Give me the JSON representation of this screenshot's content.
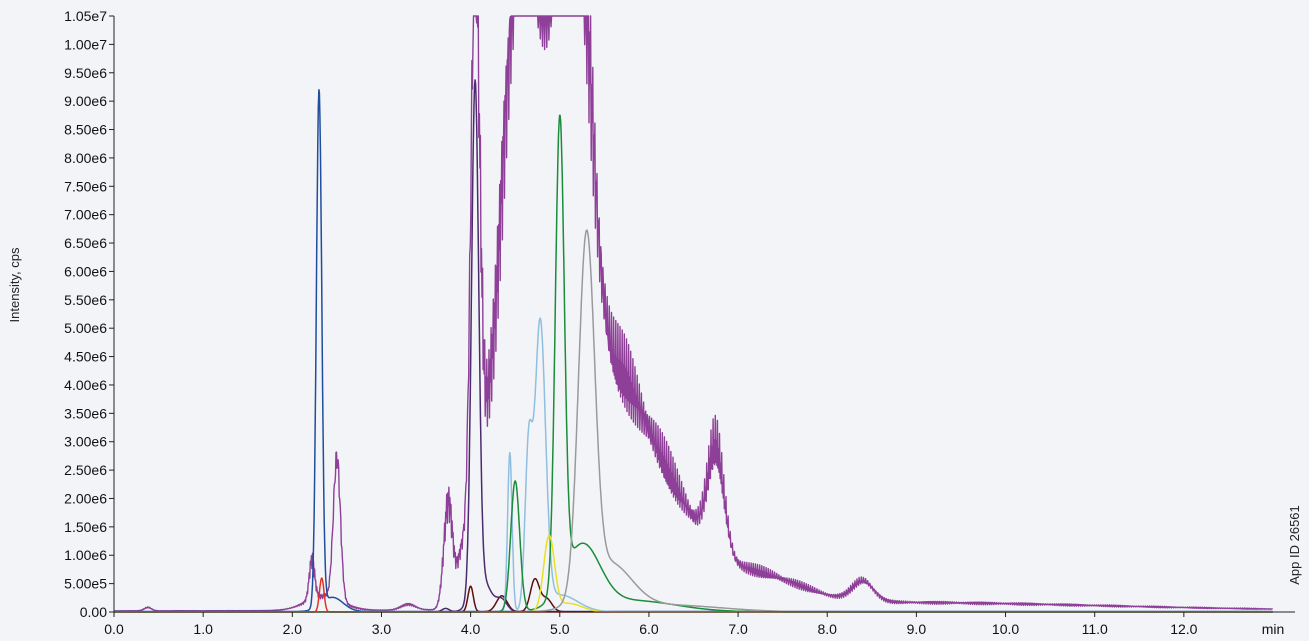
{
  "chart_data": {
    "type": "line",
    "title": "",
    "xlabel": "min",
    "ylabel": "Intensity, cps",
    "xlim": [
      0.0,
      13.0
    ],
    "ylim": [
      0,
      10500000
    ],
    "x_ticks": [
      "0.0",
      "1.0",
      "2.0",
      "3.0",
      "4.0",
      "5.0",
      "6.0",
      "7.0",
      "8.0",
      "9.0",
      "10.0",
      "11.0",
      "12.0"
    ],
    "y_ticks": [
      "0.00",
      "5.00e5",
      "1.00e6",
      "1.50e6",
      "2.00e6",
      "2.50e6",
      "3.00e6",
      "3.50e6",
      "4.00e6",
      "4.50e6",
      "5.00e6",
      "5.50e6",
      "6.00e6",
      "6.50e6",
      "7.00e6",
      "7.50e6",
      "8.00e6",
      "8.50e6",
      "9.00e6",
      "9.50e6",
      "1.00e7",
      "1.05e7"
    ],
    "grid": false,
    "legend": "none",
    "side_note": "App ID 26561",
    "series": [
      {
        "color": "#8e3f98",
        "noise": 0.18,
        "baseline": 20000,
        "peaks": [
          [
            0.38,
            0.04,
            60000
          ],
          [
            2.22,
            0.03,
            700000
          ],
          [
            2.5,
            0.04,
            2500000
          ],
          [
            2.35,
            0.2,
            250000
          ],
          [
            3.3,
            0.08,
            100000
          ],
          [
            3.75,
            0.05,
            1900000
          ],
          [
            3.9,
            0.05,
            900000
          ],
          [
            4.05,
            0.05,
            10300000
          ],
          [
            4.2,
            0.12,
            3000000
          ],
          [
            4.4,
            0.1,
            4600000
          ],
          [
            4.6,
            0.14,
            9700000
          ],
          [
            4.85,
            0.16,
            7800000
          ],
          [
            5.1,
            0.14,
            7600000
          ],
          [
            5.25,
            0.15,
            6400000
          ],
          [
            5.55,
            0.25,
            3000000
          ],
          [
            5.95,
            0.3,
            2000000
          ],
          [
            6.4,
            0.35,
            1000000
          ],
          [
            6.75,
            0.09,
            1800000
          ],
          [
            7.2,
            0.5,
            500000
          ],
          [
            8.4,
            0.12,
            350000
          ],
          [
            8.6,
            2.5,
            150000
          ]
        ]
      },
      {
        "color": "#1f4e9c",
        "noise": 0.0,
        "baseline": 8000,
        "peaks": [
          [
            2.3,
            0.03,
            9100000
          ],
          [
            2.45,
            0.12,
            250000
          ]
        ]
      },
      {
        "color": "#e8321f",
        "noise": 0.0,
        "baseline": 0,
        "peaks": [
          [
            2.33,
            0.025,
            600000
          ]
        ]
      },
      {
        "color": "#5c1010",
        "noise": 0.0,
        "baseline": 5000,
        "peaks": [
          [
            4.0,
            0.03,
            450000
          ],
          [
            4.35,
            0.06,
            280000
          ],
          [
            4.72,
            0.05,
            560000
          ],
          [
            4.85,
            0.06,
            230000
          ]
        ]
      },
      {
        "color": "#4a2b6e",
        "noise": 0.0,
        "baseline": 3000,
        "peaks": [
          [
            3.72,
            0.04,
            60000
          ],
          [
            4.05,
            0.04,
            8900000
          ],
          [
            4.12,
            0.1,
            600000
          ],
          [
            4.35,
            0.06,
            200000
          ]
        ]
      },
      {
        "color": "#8fbfe0",
        "noise": 0.0,
        "baseline": 2000,
        "peaks": [
          [
            4.44,
            0.025,
            2800000
          ],
          [
            4.65,
            0.04,
            2700000
          ],
          [
            4.78,
            0.06,
            5000000
          ],
          [
            5.0,
            0.2,
            300000
          ]
        ]
      },
      {
        "color": "#1a8c3a",
        "noise": 0.0,
        "baseline": 2000,
        "peaks": [
          [
            4.5,
            0.05,
            2300000
          ],
          [
            5.0,
            0.05,
            8200000
          ],
          [
            5.25,
            0.2,
            1100000
          ],
          [
            5.8,
            0.5,
            200000
          ]
        ]
      },
      {
        "color": "#e8e022",
        "noise": 0.0,
        "baseline": 1000,
        "peaks": [
          [
            4.88,
            0.06,
            1300000
          ],
          [
            5.1,
            0.15,
            150000
          ]
        ]
      },
      {
        "color": "#9a9a9a",
        "noise": 0.0,
        "baseline": 2000,
        "peaks": [
          [
            5.3,
            0.09,
            6200000
          ],
          [
            5.55,
            0.25,
            800000
          ],
          [
            6.2,
            0.6,
            120000
          ]
        ]
      }
    ]
  }
}
